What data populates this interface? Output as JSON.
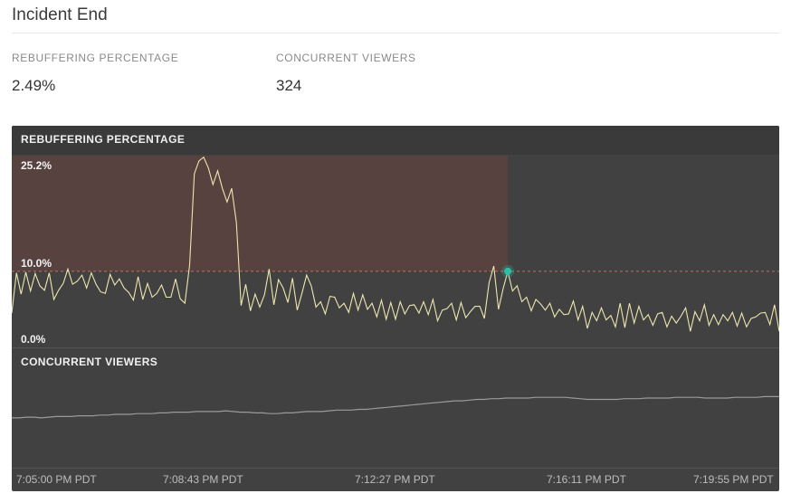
{
  "header": {
    "title": "Incident End"
  },
  "metrics": [
    {
      "label": "REBUFFERING PERCENTAGE",
      "value": "2.49%"
    },
    {
      "label": "CONCURRENT VIEWERS",
      "value": "324"
    }
  ],
  "colors": {
    "panel_bg": "#414141",
    "line": "#ece7ae",
    "viewers_line": "#9a9a9a",
    "incident_band": "#5a4340",
    "threshold": "#c07058",
    "marker": "#2bbfa8"
  },
  "chart_data": [
    {
      "type": "line",
      "title": "REBUFFERING PERCENTAGE",
      "y_tick_labels": [
        "25.2%",
        "10.0%",
        "0.0%"
      ],
      "ylim": [
        0,
        25.2
      ],
      "threshold": 10.0,
      "incident_end_index": 106,
      "series": [
        {
          "values": [
            4.5,
            9.8,
            7.0,
            9.9,
            7.4,
            9.7,
            8.1,
            7.5,
            9.8,
            6.3,
            7.5,
            8.4,
            10.3,
            8.3,
            8.7,
            9.5,
            7.8,
            9.8,
            8.3,
            7.3,
            7.1,
            9.6,
            8.2,
            9.0,
            7.8,
            7.2,
            6.2,
            9.3,
            6.3,
            8.4,
            6.6,
            7.1,
            8.2,
            6.6,
            6.6,
            9.0,
            6.4,
            5.8,
            10.8,
            22.8,
            24.5,
            25.0,
            23.6,
            21.4,
            23.2,
            20.9,
            19.1,
            20.9,
            16.4,
            5.5,
            8.3,
            4.8,
            7.0,
            5.3,
            6.9,
            10.3,
            5.6,
            8.9,
            7.8,
            5.9,
            9.1,
            4.9,
            7.1,
            9.5,
            8.1,
            5.3,
            6.0,
            4.4,
            6.7,
            6.6,
            5.2,
            5.8,
            4.6,
            7.1,
            4.9,
            6.9,
            5.0,
            5.8,
            4.0,
            6.2,
            3.7,
            5.9,
            3.7,
            6.0,
            4.4,
            5.5,
            5.6,
            4.5,
            6.0,
            4.3,
            6.3,
            3.5,
            4.9,
            5.1,
            5.8,
            3.6,
            5.9,
            3.9,
            4.7,
            5.4,
            5.4,
            3.8,
            8.5,
            10.7,
            5.0,
            7.7,
            10.0,
            7.4,
            8.1,
            6.0,
            6.6,
            4.8,
            6.3,
            5.7,
            4.9,
            5.8,
            4.0,
            5.0,
            4.3,
            4.4,
            6.1,
            3.6,
            5.4,
            2.5,
            4.6,
            3.5,
            5.2,
            3.6,
            4.2,
            2.7,
            5.8,
            2.6,
            5.8,
            3.2,
            5.4,
            3.6,
            4.3,
            2.9,
            4.4,
            4.6,
            2.7,
            4.1,
            3.2,
            4.1,
            5.2,
            2.1,
            4.7,
            3.5,
            5.6,
            2.9,
            4.3,
            3.0,
            4.3,
            3.5,
            4.6,
            2.8,
            4.5,
            2.7,
            3.8,
            4.0,
            4.5,
            4.6,
            3.0,
            5.6,
            2.1
          ]
        }
      ]
    },
    {
      "type": "line",
      "title": "CONCURRENT VIEWERS",
      "x_tick_labels": [
        "7:05:00 PM PDT",
        "7:08:43 PM PDT",
        "7:12:27 PM PDT",
        "7:16:11 PM PDT",
        "7:19:55 PM PDT"
      ],
      "series": [
        {
          "values": [
            290,
            290,
            291,
            291,
            290,
            291,
            292,
            292,
            292,
            293,
            293,
            293,
            294,
            294,
            295,
            295,
            295,
            296,
            296,
            296,
            297,
            297,
            298,
            298,
            298,
            299,
            299,
            299,
            299,
            300,
            299,
            298,
            298,
            297,
            297,
            296,
            296,
            297,
            297,
            298,
            299,
            299,
            299,
            300,
            301,
            301,
            301,
            302,
            302,
            303,
            304,
            305,
            306,
            307,
            308,
            309,
            310,
            311,
            312,
            313,
            314,
            314,
            315,
            316,
            316,
            317,
            317,
            318,
            318,
            318,
            318,
            319,
            319,
            319,
            319,
            319,
            318,
            317,
            316,
            316,
            316,
            316,
            316,
            317,
            317,
            317,
            318,
            318,
            318,
            318,
            319,
            319,
            319,
            319,
            318,
            318,
            318,
            318,
            319,
            319,
            319,
            319,
            320,
            320,
            320
          ]
        }
      ]
    }
  ]
}
